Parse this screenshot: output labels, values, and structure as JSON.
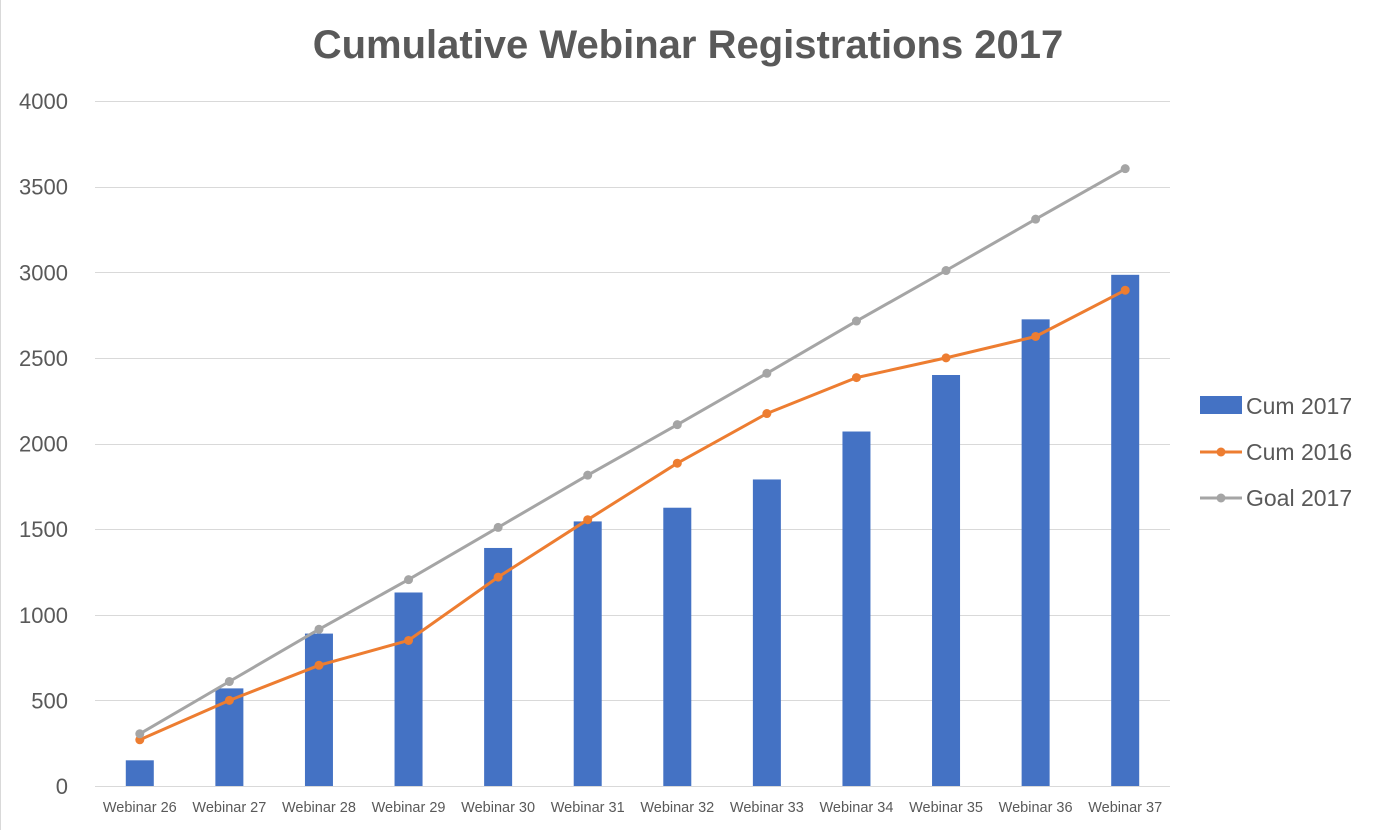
{
  "chart_data": {
    "type": "bar",
    "title": "Cumulative Webinar Registrations 2017",
    "categories": [
      "Webinar 26",
      "Webinar 27",
      "Webinar 28",
      "Webinar 29",
      "Webinar 30",
      "Webinar 31",
      "Webinar 32",
      "Webinar 33",
      "Webinar 34",
      "Webinar 35",
      "Webinar 36",
      "Webinar 37"
    ],
    "ylim": [
      0,
      4000
    ],
    "yticks": [
      0,
      500,
      1000,
      1500,
      2000,
      2500,
      3000,
      3500,
      4000
    ],
    "grid": true,
    "legend_position": "right",
    "series": [
      {
        "name": "Cum 2017",
        "kind": "bar",
        "color": "#4472C4",
        "values": [
          150,
          570,
          890,
          1130,
          1390,
          1545,
          1625,
          1790,
          2070,
          2400,
          2725,
          2985
        ]
      },
      {
        "name": "Cum 2016",
        "kind": "line",
        "color": "#ED7D31",
        "values": [
          270,
          500,
          705,
          850,
          1220,
          1555,
          1885,
          2175,
          2385,
          2500,
          2625,
          2895
        ]
      },
      {
        "name": "Goal 2017",
        "kind": "line",
        "color": "#A5A5A5",
        "values": [
          305,
          610,
          915,
          1205,
          1510,
          1815,
          2110,
          2410,
          2715,
          3010,
          3310,
          3605
        ]
      }
    ]
  }
}
